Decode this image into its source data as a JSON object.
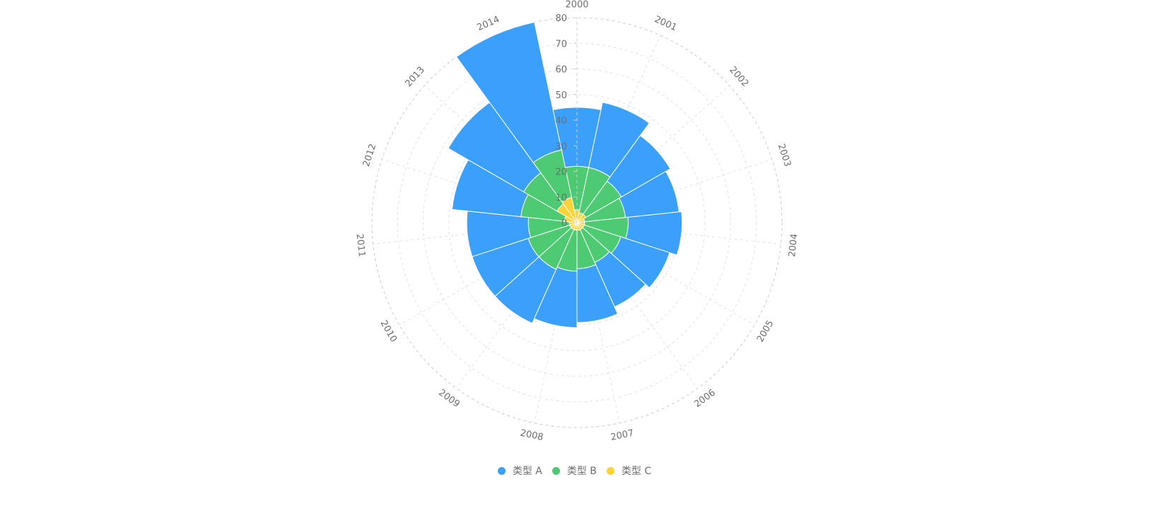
{
  "colors": {
    "a": "#3aa0fa",
    "b": "#4dca72",
    "c": "#fad337"
  },
  "legend": {
    "items": [
      {
        "label": "类型 A",
        "color": "#3aa0fa"
      },
      {
        "label": "类型 B",
        "color": "#4dca72"
      },
      {
        "label": "类型 C",
        "color": "#fad337"
      }
    ]
  },
  "chart_data": {
    "type": "bar",
    "subtype": "polar-stacked-rose",
    "categories": [
      "2000",
      "2001",
      "2002",
      "2003",
      "2004",
      "2005",
      "2006",
      "2007",
      "2008",
      "2009",
      "2010",
      "2011",
      "2012",
      "2013",
      "2014"
    ],
    "series": [
      {
        "name": "类型 C",
        "values": [
          5,
          4,
          4,
          3,
          3,
          3,
          3,
          3,
          3,
          3,
          3,
          3,
          5,
          9,
          10
        ]
      },
      {
        "name": "类型 B",
        "values": [
          17,
          18,
          16,
          16,
          17,
          15,
          14,
          15,
          16,
          17,
          17,
          16,
          17,
          15,
          19
        ]
      },
      {
        "name": "类型 A",
        "values": [
          23,
          26,
          22,
          21,
          21,
          20,
          19,
          21,
          22,
          23,
          23,
          24,
          27,
          34,
          51
        ]
      }
    ],
    "radial_ticks": [
      0,
      10,
      20,
      30,
      40,
      50,
      60,
      70,
      80
    ],
    "rlim": [
      0,
      80
    ],
    "grid": true,
    "legend_position": "bottom"
  }
}
